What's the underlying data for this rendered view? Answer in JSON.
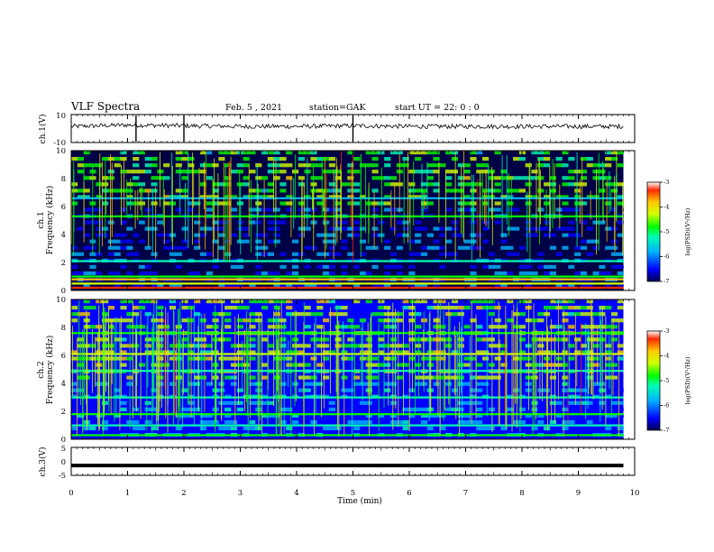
{
  "header": {
    "title": "VLF Spectra",
    "date": "Feb. 5 , 2021",
    "station": "station=GAK",
    "start": "start UT =  22: 0 : 0"
  },
  "panels": {
    "ch1v": {
      "ylabel": "ch.1(V)",
      "ticks": [
        "10",
        "-10"
      ]
    },
    "spec1": {
      "ylabel_ch": "ch.1",
      "ylabel": "Frequency (kHz)",
      "ticks": [
        "0",
        "2",
        "4",
        "6",
        "8",
        "10"
      ]
    },
    "spec2": {
      "ylabel_ch": "ch.2",
      "ylabel": "Frequency (kHz)",
      "ticks": [
        "0",
        "2",
        "4",
        "6",
        "8",
        "10"
      ]
    },
    "ch3v": {
      "ylabel": "ch.3(V)",
      "ticks": [
        "5",
        "0",
        "-5"
      ]
    }
  },
  "xaxis": {
    "label": "Time (min)",
    "ticks": [
      "0",
      "1",
      "2",
      "3",
      "4",
      "5",
      "6",
      "7",
      "8",
      "9",
      "10"
    ]
  },
  "colorbar": {
    "label": "log(PSD)(V²/Hz)",
    "ticks": [
      "-3",
      "-4",
      "-5",
      "-6",
      "-7"
    ]
  },
  "chart_data": [
    {
      "type": "line",
      "title": "VLF Spectra",
      "ylabel": "ch.1(V)",
      "xlabel": "Time (min)",
      "xlim": [
        0,
        10
      ],
      "ylim": [
        -10,
        10
      ],
      "x": [
        0,
        1,
        2,
        3,
        4,
        5,
        6,
        7,
        8,
        9,
        9.8
      ],
      "series": [
        {
          "values": [
            1.5,
            2.5,
            2.0,
            1.5,
            1.5,
            2.0,
            1.5,
            1.5,
            1.5,
            1.5,
            1.5
          ]
        }
      ],
      "spikes_x": [
        1.15,
        2.0,
        5.0
      ]
    },
    {
      "type": "heatmap",
      "ylabel": "ch.1 Frequency (kHz)",
      "xlim": [
        0,
        10
      ],
      "ylim": [
        0,
        10
      ],
      "zlim": [
        -7,
        -3
      ],
      "data_extent_x": [
        0,
        9.8
      ],
      "background_log_psd": -6.8,
      "bands": [
        {
          "f": 0.2,
          "log_psd": -3.5
        },
        {
          "f": 0.5,
          "log_psd": -4.5
        },
        {
          "f": 0.8,
          "log_psd": -4.2
        },
        {
          "f": 1.0,
          "log_psd": -5.0
        },
        {
          "f": 2.1,
          "log_psd": -5.6
        },
        {
          "f": 5.3,
          "log_psd": -5.2
        },
        {
          "f": 6.6,
          "log_psd": -5.8
        }
      ],
      "noisy_region_khz": [
        6,
        10
      ]
    },
    {
      "type": "heatmap",
      "ylabel": "ch.2 Frequency (kHz)",
      "xlim": [
        0,
        10
      ],
      "ylim": [
        0,
        10
      ],
      "zlim": [
        -7,
        -3
      ],
      "data_extent_x": [
        0,
        9.8
      ],
      "background_log_psd": -6.5,
      "bands": [
        {
          "f": 0.3,
          "log_psd": -4.8
        },
        {
          "f": 1.0,
          "log_psd": -5.5
        },
        {
          "f": 1.8,
          "log_psd": -5.0
        },
        {
          "f": 3.0,
          "log_psd": -5.7
        },
        {
          "f": 4.9,
          "log_psd": -5.4
        },
        {
          "f": 6.1,
          "log_psd": -4.6
        },
        {
          "f": 7.6,
          "log_psd": -5.0
        }
      ],
      "noisy_region_khz": [
        4,
        10
      ]
    },
    {
      "type": "line",
      "ylabel": "ch.3(V)",
      "xlim": [
        0,
        10
      ],
      "ylim": [
        -5,
        5
      ],
      "x": [
        0,
        9.8
      ],
      "series": [
        {
          "values": [
            -1.5,
            -1.5
          ]
        }
      ]
    }
  ],
  "colors": {
    "colormap": [
      "#000046",
      "#0000ff",
      "#00b4ff",
      "#00ffb4",
      "#00ff00",
      "#d2ff00",
      "#ffc800",
      "#ff2800",
      "#ffffff"
    ]
  }
}
